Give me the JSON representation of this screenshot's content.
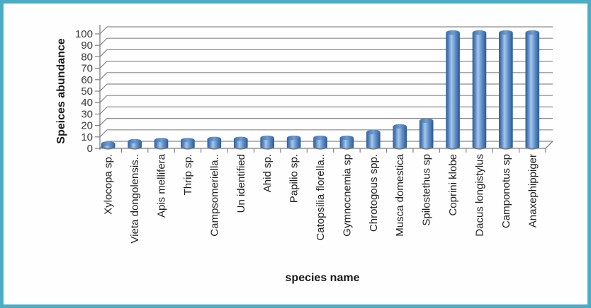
{
  "frame": {
    "border_color": "#4BACC6",
    "background": "#FEFEFE"
  },
  "chart_data": {
    "type": "bar",
    "style": "3d-cylinder-columns",
    "title": "",
    "xlabel": "species name",
    "ylabel": "Speices abundance",
    "ylim": [
      0,
      100
    ],
    "ytick_step": 10,
    "yticks": [
      0,
      10,
      20,
      30,
      40,
      50,
      60,
      70,
      80,
      90,
      100
    ],
    "grid": true,
    "legend_position": "none",
    "x_label_rotation_degrees": 90,
    "colors": {
      "bar_fill": "#4F81BD",
      "bar_edge": "#2F5B94",
      "bar_highlight": "#A8C6EA",
      "gridline": "#8A8A8A",
      "axis_line": "#7F7F7F"
    },
    "categories": [
      "Xylocopa sp.",
      "Vieta dongolensis..",
      "Apis mellifera",
      "Thrip sp.",
      "Campsomeriella..",
      "Un identified",
      "Ahid sp.",
      "Papilio sp.",
      "Catopsilia florella..",
      "Gymnocnemia sp",
      "Chrotogous spp.",
      "Musca domestica",
      "Spilostethus sp",
      "Coprini klobe",
      "Dacus longistylus",
      "Camponotus sp",
      "Anaxephippiger"
    ],
    "values": [
      3,
      5,
      6,
      6,
      7,
      7,
      8,
      8,
      8,
      8,
      13,
      18,
      23,
      100,
      100,
      100,
      100
    ]
  }
}
